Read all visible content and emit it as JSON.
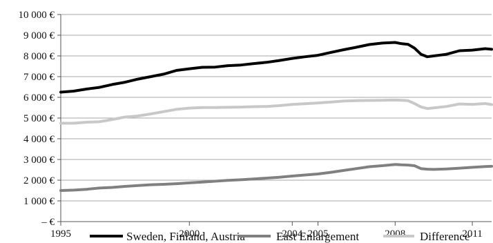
{
  "chart_data": {
    "type": "line",
    "x_tick_labels": [
      "1995",
      "2000",
      "2004",
      "2005",
      "2008",
      "2011"
    ],
    "x_tick_values": [
      1995.0,
      2000.0,
      2004.0,
      2005.0,
      2008.0,
      2011.0
    ],
    "y_tick_labels": [
      "– €",
      "1 000 €",
      "2 000 €",
      "3 000 €",
      "4 000 €",
      "5 000 €",
      "6 000 €",
      "7 000 €",
      "8 000 €",
      "9 000 €",
      "10 000 €"
    ],
    "ylim": [
      0,
      10000
    ],
    "xlim": [
      1995.0,
      2011.75
    ],
    "grid": true,
    "legend_position": "bottom",
    "series": [
      {
        "name": "Sweden, Finland, Austria",
        "color": "#000000",
        "x": [
          1995.0,
          1995.5,
          1996.0,
          1996.5,
          1997.0,
          1997.5,
          1998.0,
          1998.5,
          1999.0,
          1999.5,
          2000.0,
          2000.5,
          2001.0,
          2001.5,
          2002.0,
          2002.5,
          2003.0,
          2003.5,
          2004.0,
          2004.5,
          2005.0,
          2005.5,
          2006.0,
          2006.5,
          2007.0,
          2007.5,
          2008.0,
          2008.25,
          2008.5,
          2008.75,
          2009.0,
          2009.25,
          2009.5,
          2010.0,
          2010.5,
          2011.0,
          2011.5,
          2011.75
        ],
        "values": [
          6250,
          6300,
          6400,
          6480,
          6620,
          6730,
          6880,
          7000,
          7120,
          7300,
          7380,
          7450,
          7460,
          7530,
          7560,
          7630,
          7690,
          7780,
          7880,
          7960,
          8030,
          8170,
          8300,
          8420,
          8550,
          8620,
          8650,
          8590,
          8560,
          8380,
          8080,
          7960,
          8000,
          8080,
          8250,
          8280,
          8350,
          8320
        ]
      },
      {
        "name": "East Enlargement",
        "color": "#808080",
        "x": [
          1995.0,
          1995.5,
          1996.0,
          1996.5,
          1997.0,
          1997.5,
          1998.0,
          1998.5,
          1999.0,
          1999.5,
          2000.0,
          2000.5,
          2001.0,
          2001.5,
          2002.0,
          2002.5,
          2003.0,
          2003.5,
          2004.0,
          2004.5,
          2005.0,
          2005.5,
          2006.0,
          2006.5,
          2007.0,
          2007.5,
          2008.0,
          2008.25,
          2008.5,
          2008.75,
          2009.0,
          2009.25,
          2009.5,
          2010.0,
          2010.5,
          2011.0,
          2011.5,
          2011.75
        ],
        "values": [
          1500,
          1520,
          1560,
          1620,
          1650,
          1700,
          1740,
          1780,
          1800,
          1830,
          1870,
          1910,
          1950,
          1990,
          2020,
          2060,
          2100,
          2140,
          2200,
          2250,
          2300,
          2380,
          2470,
          2560,
          2650,
          2700,
          2760,
          2740,
          2730,
          2700,
          2560,
          2530,
          2520,
          2540,
          2580,
          2620,
          2660,
          2670
        ]
      },
      {
        "name": "Difference",
        "color": "#c8c8c8",
        "x": [
          1995.0,
          1995.5,
          1996.0,
          1996.5,
          1997.0,
          1997.5,
          1998.0,
          1998.5,
          1999.0,
          1999.5,
          2000.0,
          2000.5,
          2001.0,
          2001.5,
          2002.0,
          2002.5,
          2003.0,
          2003.5,
          2004.0,
          2004.5,
          2005.0,
          2005.5,
          2006.0,
          2006.5,
          2007.0,
          2007.5,
          2008.0,
          2008.25,
          2008.5,
          2008.75,
          2009.0,
          2009.25,
          2009.5,
          2010.0,
          2010.5,
          2011.0,
          2011.5,
          2011.75
        ],
        "values": [
          4750,
          4750,
          4800,
          4820,
          4930,
          5050,
          5100,
          5200,
          5310,
          5420,
          5480,
          5510,
          5510,
          5520,
          5530,
          5550,
          5560,
          5600,
          5660,
          5690,
          5730,
          5770,
          5820,
          5840,
          5850,
          5860,
          5870,
          5860,
          5840,
          5700,
          5540,
          5460,
          5490,
          5560,
          5680,
          5660,
          5700,
          5650
        ]
      }
    ]
  }
}
